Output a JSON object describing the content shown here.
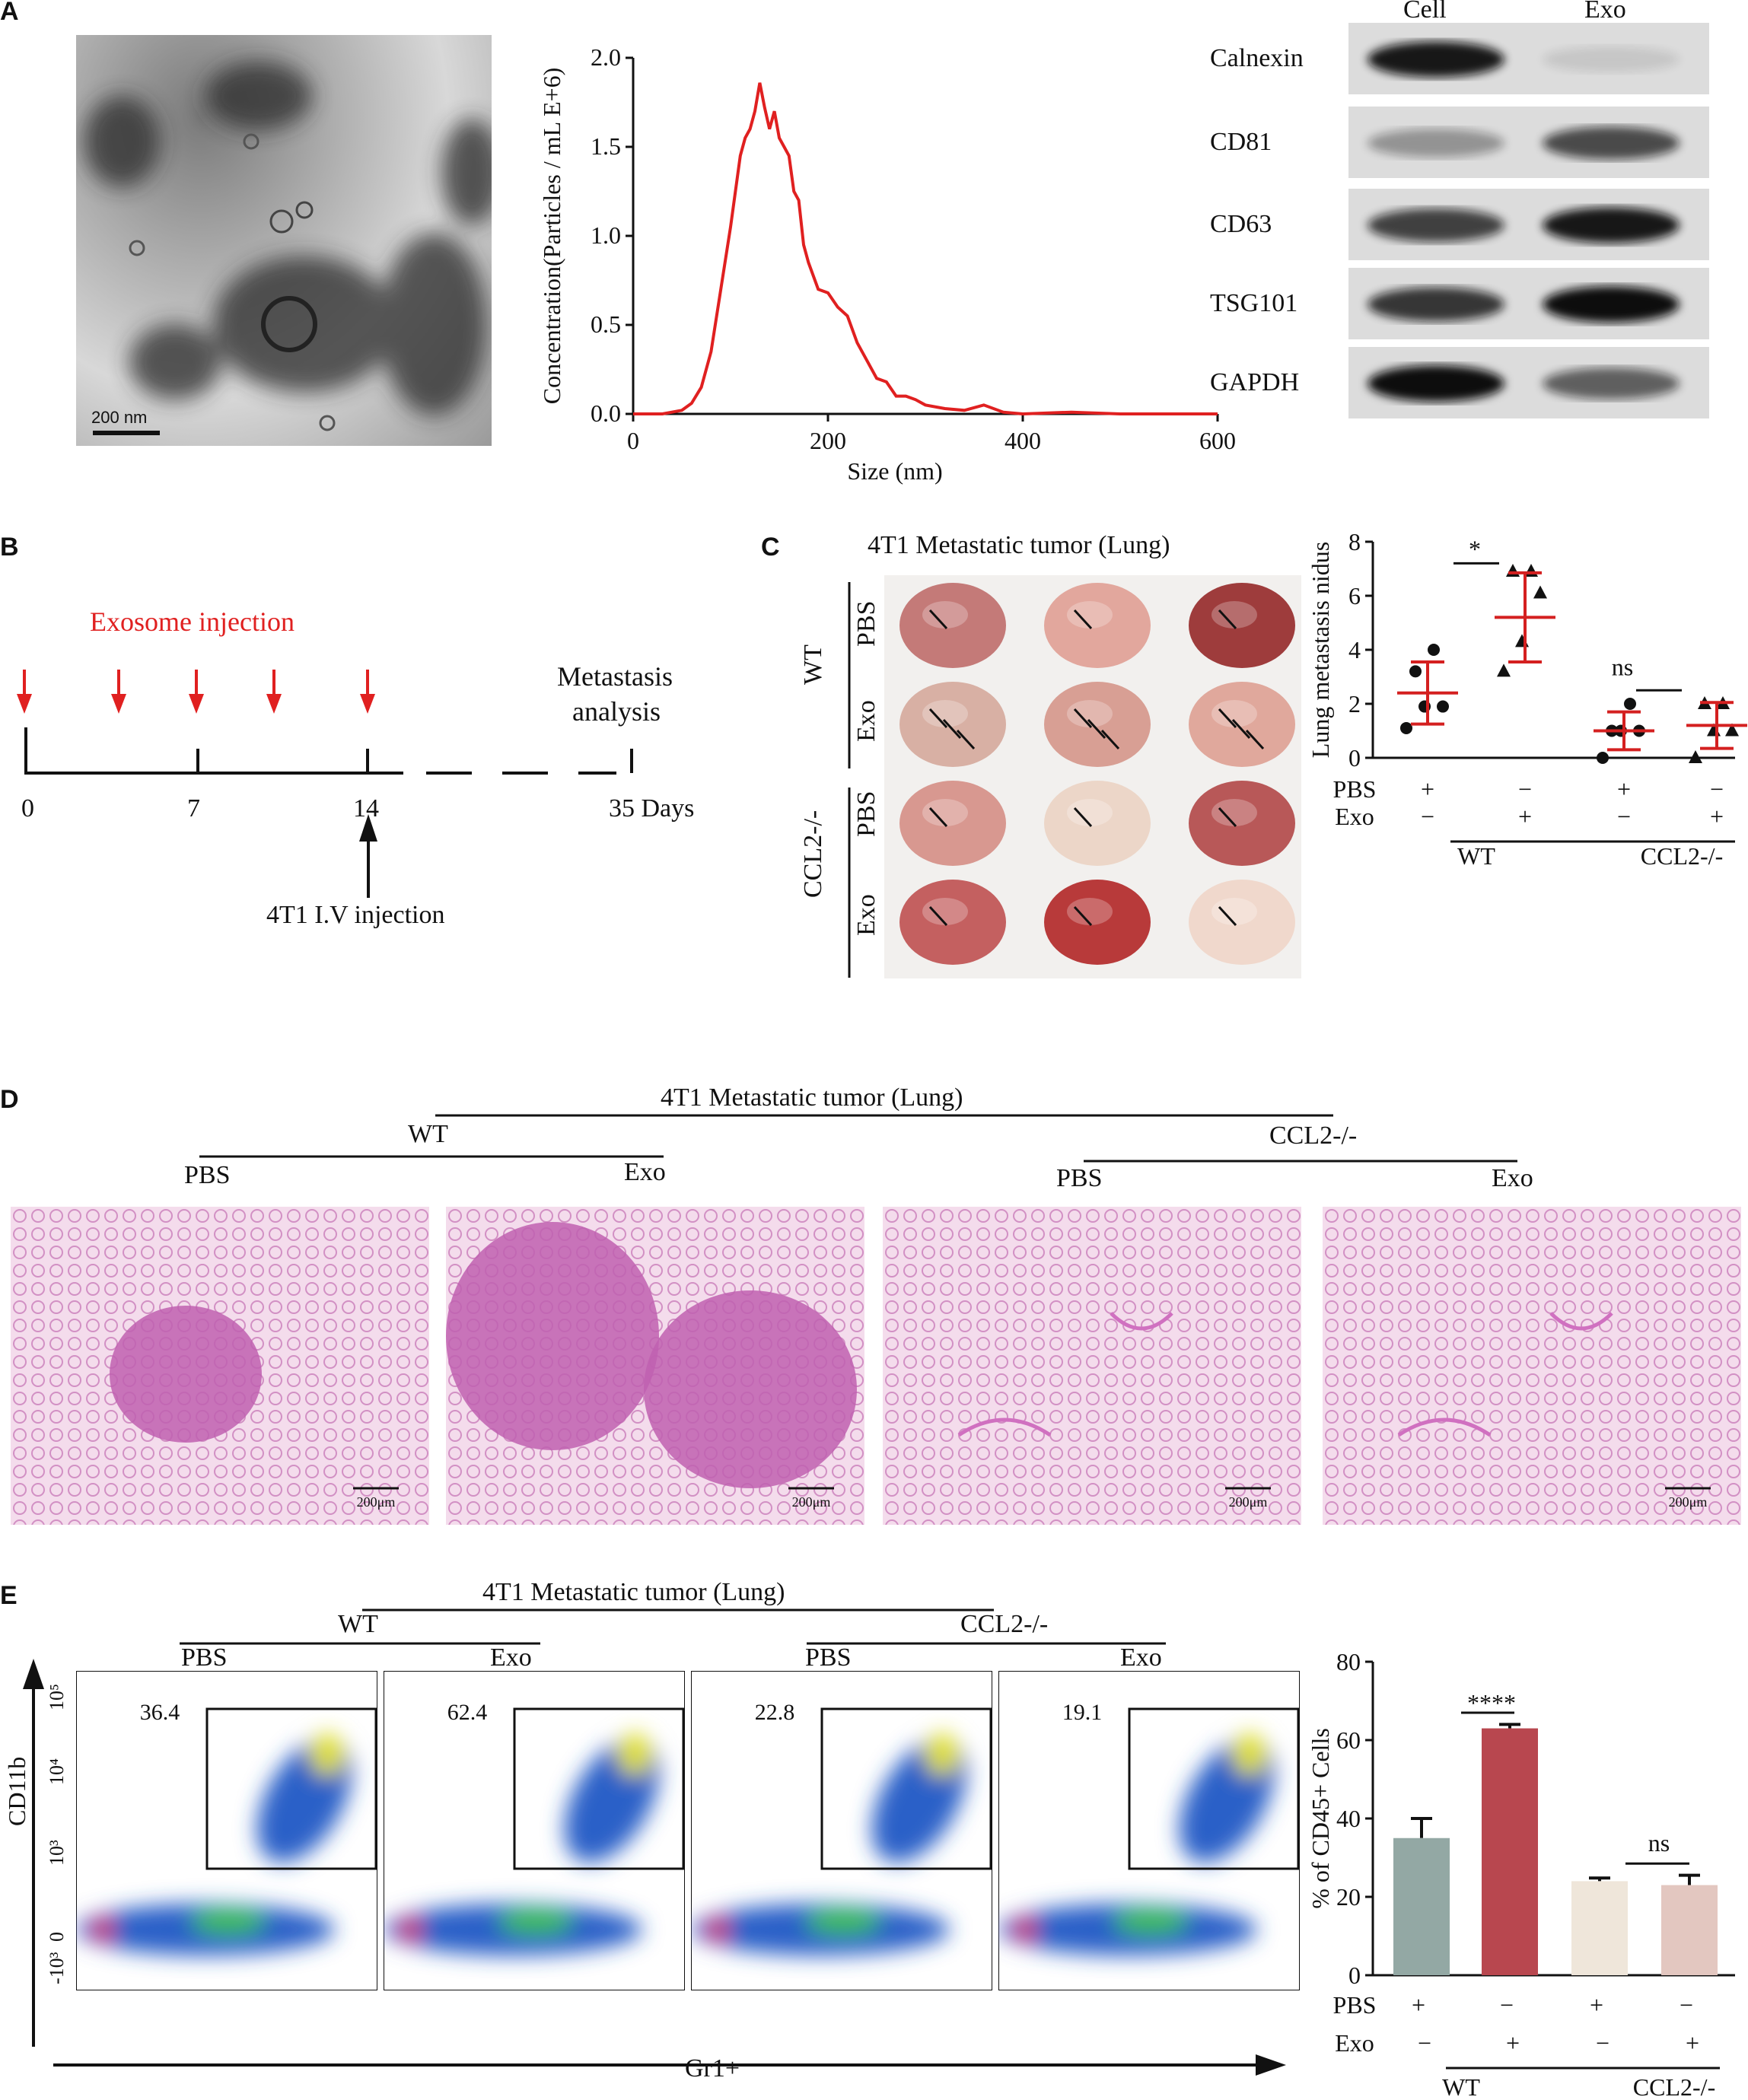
{
  "panel_labels": {
    "a": "A",
    "b": "B",
    "c": "C",
    "d": "D",
    "e": "E"
  },
  "colors": {
    "red": "#e02020",
    "nta_line": "#e02020",
    "bar_wt_pbs": "#93a8a4",
    "bar_wt_exo": "#b8474f",
    "bar_ko_pbs": "#efe6da",
    "bar_ko_exo": "#e3c7c0"
  },
  "panel_a": {
    "tem_scale": "200 nm",
    "chart_data": {
      "type": "line",
      "xlabel": "Size (nm)",
      "ylabel": "Concentration(Particles / mL E+6)",
      "xlim": [
        0,
        600
      ],
      "ylim": [
        0,
        2.0
      ],
      "xticks": [
        "0",
        "200",
        "400",
        "600"
      ],
      "yticks": [
        "0.0",
        "0.5",
        "1.0",
        "1.5",
        "2.0"
      ],
      "series": [
        {
          "x": [
            0,
            30,
            50,
            60,
            70,
            80,
            90,
            100,
            110,
            115,
            120,
            125,
            130,
            135,
            140,
            145,
            150,
            155,
            160,
            165,
            170,
            175,
            180,
            190,
            200,
            210,
            220,
            230,
            240,
            250,
            260,
            270,
            280,
            290,
            300,
            320,
            340,
            360,
            380,
            400,
            450,
            500,
            600
          ],
          "y": [
            0,
            0,
            0.02,
            0.06,
            0.15,
            0.35,
            0.7,
            1.05,
            1.45,
            1.55,
            1.6,
            1.7,
            1.86,
            1.72,
            1.6,
            1.7,
            1.55,
            1.5,
            1.45,
            1.25,
            1.2,
            0.95,
            0.85,
            0.7,
            0.68,
            0.6,
            0.55,
            0.4,
            0.3,
            0.2,
            0.18,
            0.1,
            0.1,
            0.08,
            0.05,
            0.03,
            0.02,
            0.05,
            0.01,
            0,
            0.01,
            0,
            0
          ]
        }
      ]
    },
    "blot": {
      "columns": [
        "Cell",
        "Exo"
      ],
      "rows": [
        {
          "label": "Calnexin",
          "cell": 0.95,
          "exo": 0.1
        },
        {
          "label": "CD81",
          "cell": 0.35,
          "exo": 0.7
        },
        {
          "label": "CD63",
          "cell": 0.75,
          "exo": 0.95
        },
        {
          "label": "TSG101",
          "cell": 0.8,
          "exo": 1.0
        },
        {
          "label": "GAPDH",
          "cell": 1.0,
          "exo": 0.6
        }
      ]
    }
  },
  "panel_b": {
    "title": "Exosome injection",
    "end_label_line1": "Metastasis",
    "end_label_line2": "analysis",
    "ticks": [
      "0",
      "7",
      "14",
      "35 Days"
    ],
    "injection_label": "4T1 I.V injection"
  },
  "panel_c": {
    "title": "4T1 Metastatic tumor (Lung)",
    "groups": [
      "WT",
      "CCL2-/-"
    ],
    "rows": [
      "PBS",
      "Exo",
      "PBS",
      "Exo"
    ],
    "chart_data": {
      "type": "scatter",
      "ylabel": "Lung metastasis nidus",
      "ylim": [
        0,
        8
      ],
      "yticks": [
        "0",
        "2",
        "4",
        "6",
        "8"
      ],
      "groups": [
        {
          "pbs": "+",
          "exo": "−",
          "mean": 2.4,
          "sd": 1.15,
          "points": [
            1.1,
            1.9,
            1.9,
            3.2,
            4.0
          ],
          "marker": "circle"
        },
        {
          "pbs": "−",
          "exo": "+",
          "mean": 5.2,
          "sd": 1.65,
          "points": [
            3.2,
            4.3,
            6.1,
            6.9,
            6.9
          ],
          "marker": "triangle"
        },
        {
          "pbs": "+",
          "exo": "−",
          "mean": 1.0,
          "sd": 0.7,
          "points": [
            0,
            1,
            1,
            1,
            2
          ],
          "marker": "circle"
        },
        {
          "pbs": "−",
          "exo": "+",
          "mean": 1.2,
          "sd": 0.85,
          "points": [
            0,
            1,
            1,
            2,
            2
          ],
          "marker": "triangle"
        }
      ],
      "sig1": "*",
      "sig2": "ns",
      "row_labels": [
        "PBS",
        "Exo"
      ],
      "group_labels": [
        "WT",
        "CCL2-/-"
      ]
    }
  },
  "panel_d": {
    "title": "4T1 Metastatic tumor (Lung)",
    "wt": "WT",
    "ko": "CCL2-/-",
    "pbs": "PBS",
    "exo": "Exo",
    "scale": "200μm"
  },
  "panel_e": {
    "title": "4T1 Metastatic tumor (Lung)",
    "wt": "WT",
    "ko": "CCL2-/-",
    "pbs": "PBS",
    "exo": "Exo",
    "y_axis": "CD11b",
    "x_axis": "Gr1+",
    "gate_values": [
      "36.4",
      "62.4",
      "22.8",
      "19.1"
    ],
    "flow_xticks": [
      "-10³",
      "0",
      "10³",
      "10⁴",
      "10⁵"
    ],
    "flow_yticks": [
      "10⁵",
      "10⁴",
      "10³",
      "0",
      "-10³"
    ],
    "chart_data": {
      "type": "bar",
      "ylabel": "% of CD45+ Cells",
      "ylim": [
        0,
        80
      ],
      "yticks": [
        "0",
        "20",
        "40",
        "60",
        "80"
      ],
      "values": [
        35,
        63,
        24,
        23
      ],
      "errors": [
        5,
        1,
        0.8,
        2.5
      ],
      "pbs": [
        "+",
        "−",
        "+",
        "−"
      ],
      "exo": [
        "−",
        "+",
        "−",
        "+"
      ],
      "sig1": "****",
      "sig2": "ns",
      "row_labels": [
        "PBS",
        "Exo"
      ],
      "group_labels": [
        "WT",
        "CCL2-/-"
      ]
    }
  }
}
